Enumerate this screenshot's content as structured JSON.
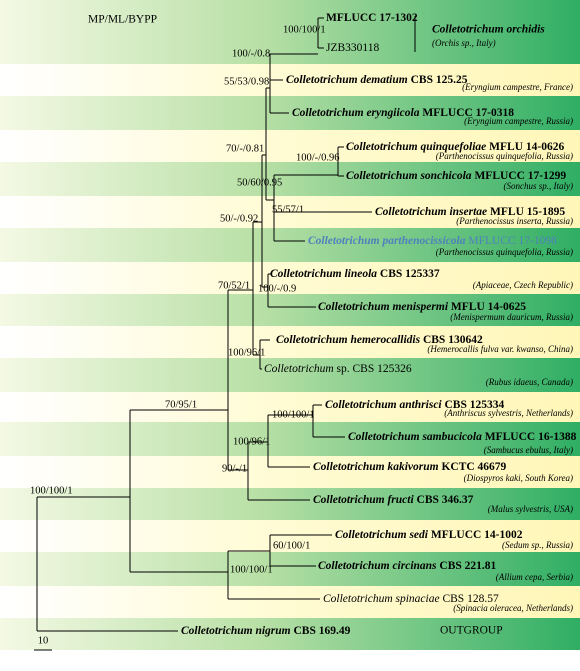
{
  "header": {
    "title": "MP/ML/BYPP"
  },
  "clade": {
    "name": "Colletotrichum orchidis",
    "host": "(Orchis sp., Italy)"
  },
  "taxa": [
    {
      "strain": "MFLUCC 17-1302"
    },
    {
      "strain": "JZB330118"
    },
    {
      "species": "Colletotrichum dematium",
      "strain": "CBS 125.25",
      "host": "(Eryngium campestre, France)"
    },
    {
      "species": "Colletotrichum eryngiicola",
      "strain": "MFLUCC 17-0318",
      "host": "(Eryngium campestre, Russia)"
    },
    {
      "species": "Colletotrichum quinquefoliae",
      "strain": "MFLU 14-0626",
      "host": "(Parthenocissus quinquefolia, Russia)"
    },
    {
      "species": "Colletotrichum sonchicola",
      "strain": "MFLUCC 17-1299",
      "host": "(Sonchus sp., Italy)"
    },
    {
      "species": "Colletotrichum insertae",
      "strain": "MFLU 15-1895",
      "host": "(Parthenocissus inserta, Russia)"
    },
    {
      "species": "Colletotrichum parthenocissicola",
      "strain": "MFLUCC 17-1098",
      "host": "(Parthenocissus quinquefolia, Russia)"
    },
    {
      "species": "Colletotrichum lineola",
      "strain": "CBS 125337",
      "host": "(Apiaceae, Czech Republic)"
    },
    {
      "species": "Colletotrichum menispermi",
      "strain": "MFLU 14-0625",
      "host": "(Menispermum dauricum, Russia)"
    },
    {
      "species": "Colletotrichum hemerocallidis",
      "strain": "CBS 130642",
      "host": "(Hemerocallis fulva var. kwanso, China)"
    },
    {
      "species": "Colletotrichum",
      "strain": "sp.  CBS 125326",
      "host": "(Rubus idaeus, Canada)"
    },
    {
      "species": "Colletotrichum anthrisci",
      "strain": "CBS 125334",
      "host": "(Anthriscus sylvestris, Netherlands)"
    },
    {
      "species": "Colletotrichum sambucicola",
      "strain": "MFLUCC 16-1388",
      "host": "(Sambucus ebulus, Italy)"
    },
    {
      "species": "Colletotrichum kakivorum",
      "strain": "KCTC 46679",
      "host": "(Diospyros kaki, South Korea)"
    },
    {
      "species": "Colletotrichum fructi",
      "strain": "CBS 346.37",
      "host": "(Malus sylvestris, USA)"
    },
    {
      "species": "Colletotrichum sedi",
      "strain": "MFLUCC 14-1002",
      "host": "(Sedum sp., Russia)"
    },
    {
      "species": "Colletotrichum circinans",
      "strain": "CBS 221.81",
      "host": "(Allium cepa, Serbia)"
    },
    {
      "species": "Colletotrichum spinaciae",
      "strain": "CBS 128.57",
      "host": "(Spinacia oleracea, Netherlands)"
    },
    {
      "species": "Colletotrichum nigrum",
      "strain": "CBS 169.49"
    }
  ],
  "outgroup": "OUTGROUP",
  "supports": [
    "100/100/1",
    "100/-/0.8",
    "55/53/0.98",
    "70/-/0.81",
    "100/-/0.96",
    "50/60/0.95",
    "55/57/1",
    "50/-/0.92",
    "70/52/1",
    "100/-/0.9",
    "100/96/1",
    "70/95/1",
    "100/100/1",
    "100/96/1",
    "90/-/1",
    "100/100/1",
    "60/100/1",
    "100/100/1"
  ],
  "scale": "10"
}
